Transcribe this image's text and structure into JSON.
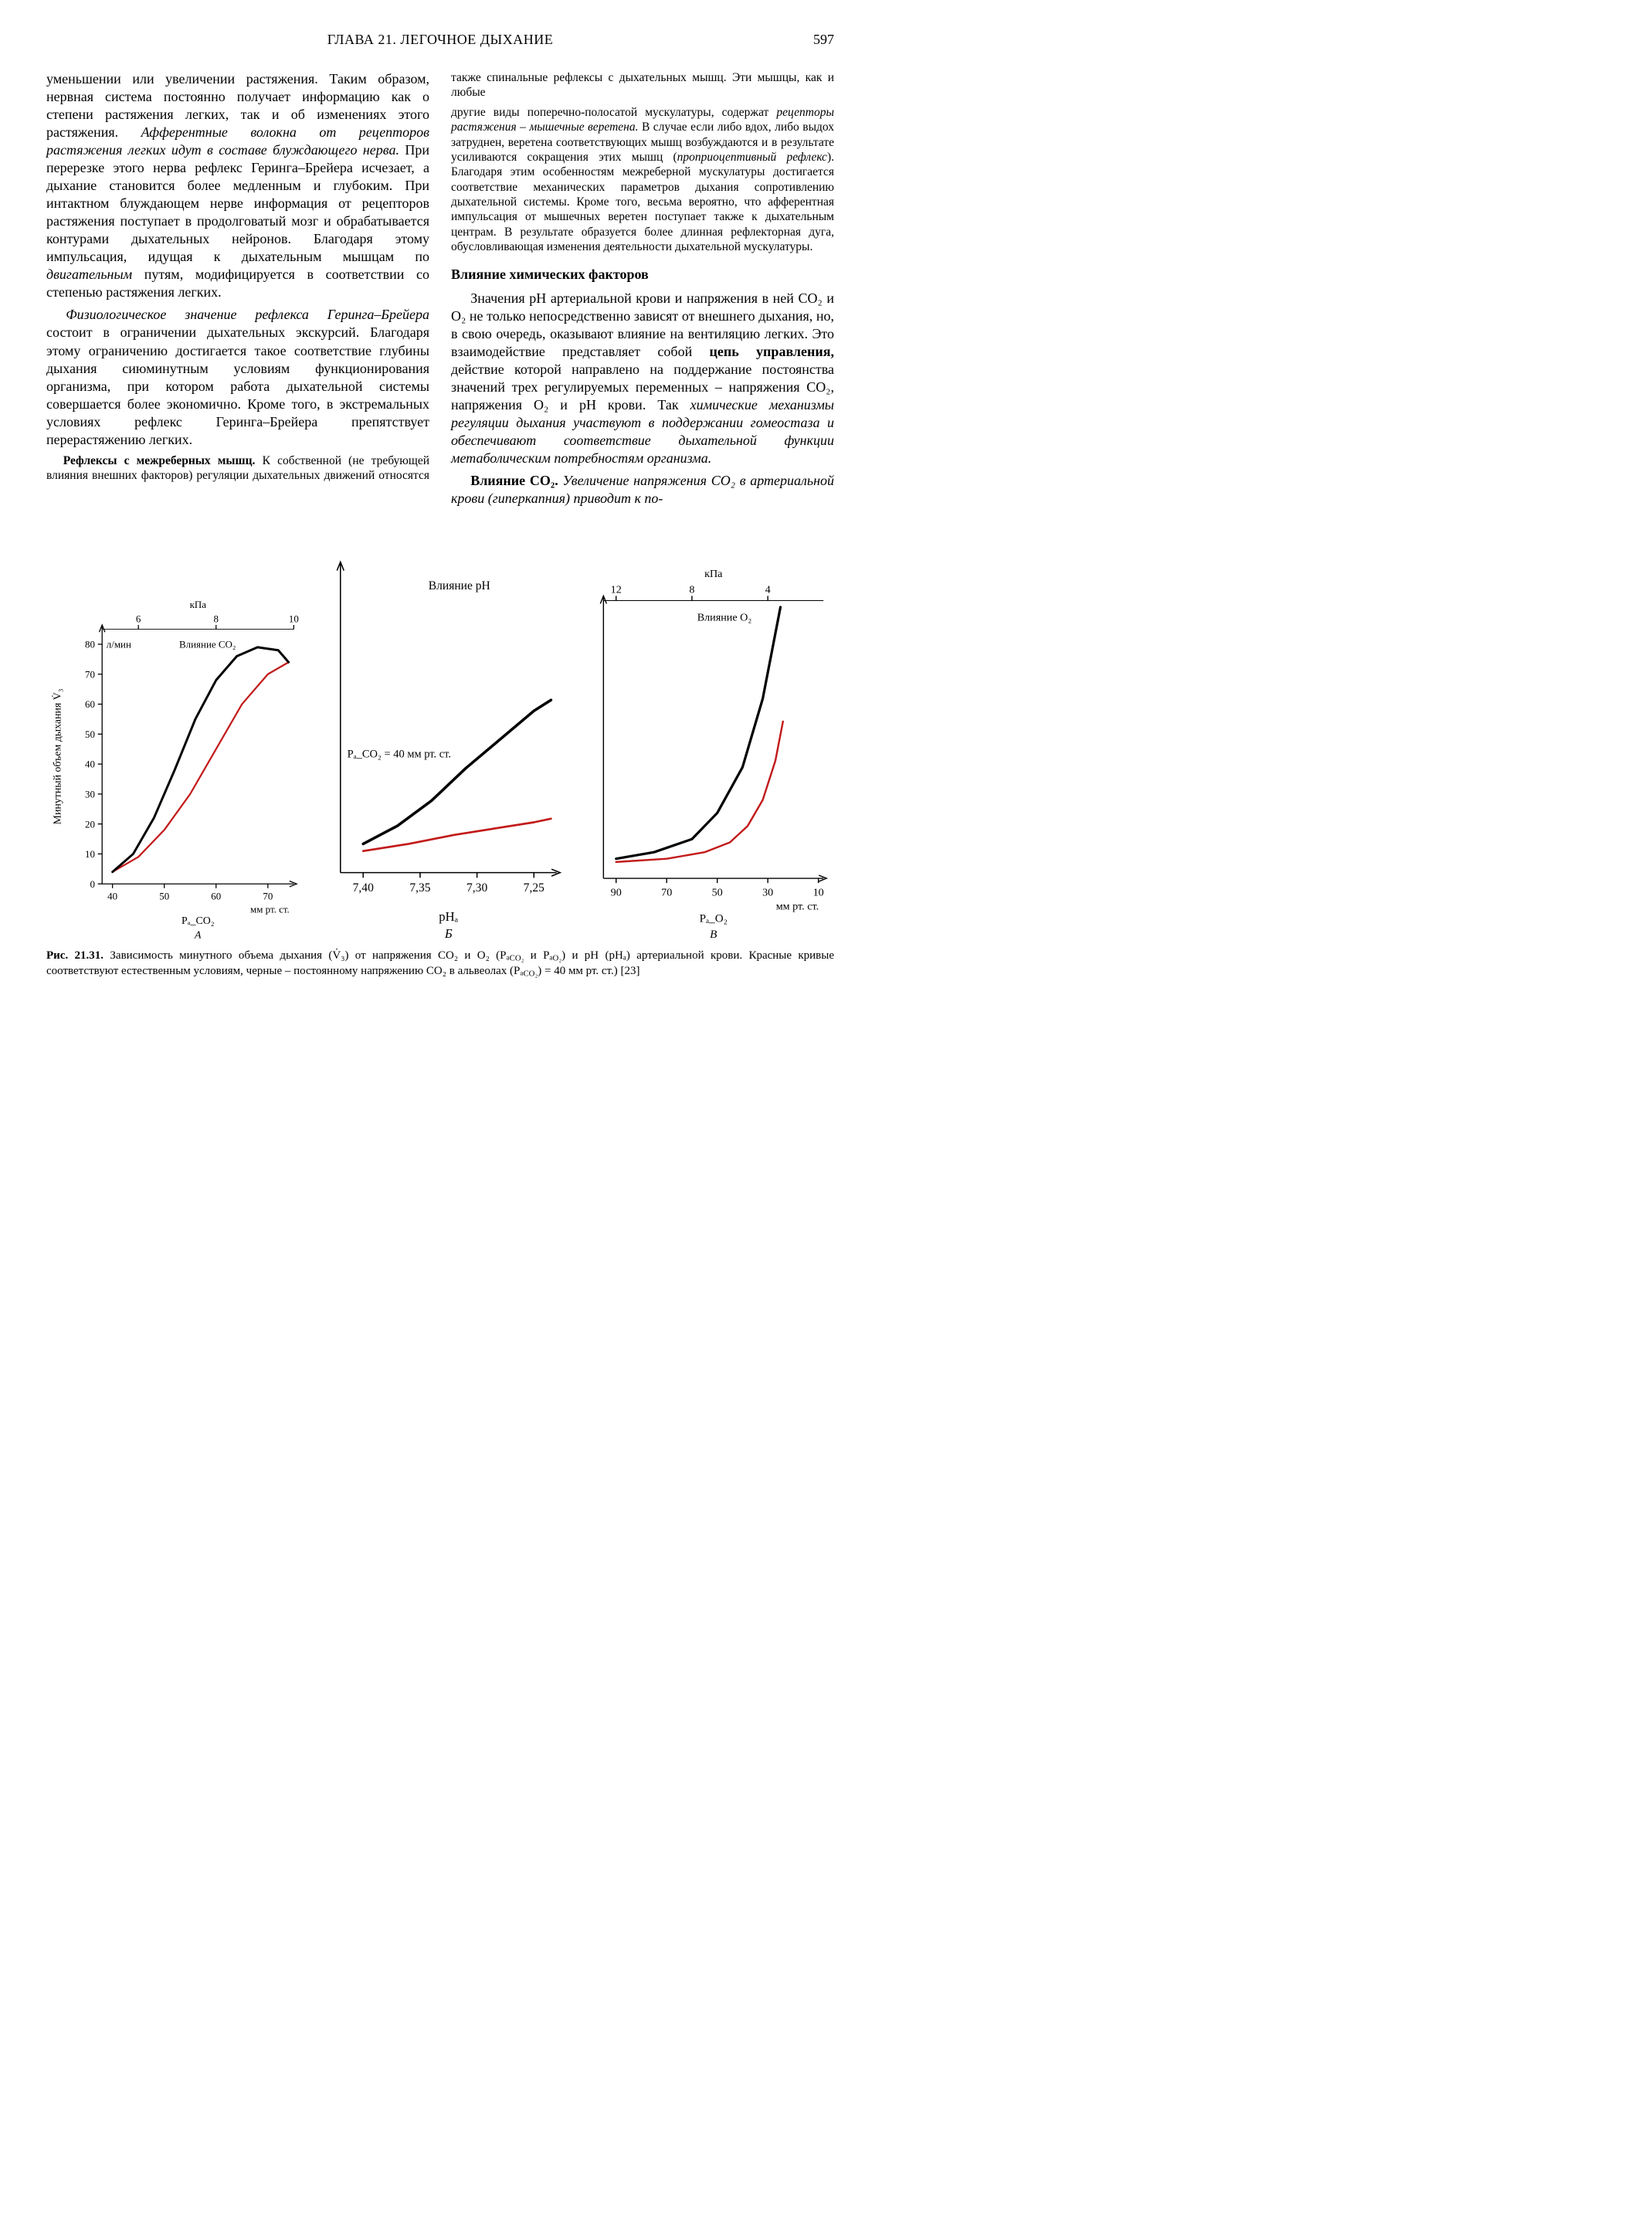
{
  "header": {
    "chapter": "ГЛАВА 21. ЛЕГОЧНОЕ ДЫХАНИЕ",
    "page": "597"
  },
  "text": {
    "p1a": "уменьшении или увеличении растяжения. Таким образом, нервная система постоянно получает информацию как о степени растяжения легких, так и об изменениях этого растяжения. ",
    "p1i": "Афферентные волокна от рецепторов растяжения легких идут в составе блуждающего нерва.",
    "p1b": " При перерезке этого нерва рефлекс Геринга–Брейера исчезает, а дыхание становится более медленным и глубоким. При интактном блуждающем нерве информация от рецепторов растяжения поступает в продолговатый мозг и обрабатывается контурами дыхательных нейронов. Благодаря этому импульсация, идущая к дыхательным мышцам по ",
    "p1c": "двигательным",
    "p1d": " путям, модифицируется в соответствии со степенью растяжения легких.",
    "p2i": "Физиологическое значение рефлекса Геринга–Брейера",
    "p2": " состоит в ограничении дыхательных экскурсий. Благодаря этому ограничению достигается такое соответствие глубины дыхания сиюминутным условиям функционирования организма, при котором работа дыхательной системы совершается более экономично. Кроме того, в экстремальных условиях рефлекс Геринга–Брейера препятствует перерастяжению легких.",
    "p3lead": "Рефлексы с межреберных мышц. ",
    "p3": "К собственной (не требующей влияния внешних факторов) регуляции дыхательных движений относятся также спинальные рефлексы с дыхательных мышц. Эти мышцы, как и любые",
    "p4a": "другие виды поперечно-полосатой мускулатуры, содержат ",
    "p4i": "рецепторы растяжения – мышечные веретена.",
    "p4b": " В случае если либо вдох, либо выдох затруднен, веретена соответствующих мышц возбуждаются и в результате усиливаются сокращения этих мышц (",
    "p4c": "проприоцептивный рефлекс",
    "p4d": "). Благодаря этим особенностям межреберной мускулатуры достигается соответствие механических параметров дыхания сопротивлению дыхательной системы. Кроме того, весьма вероятно, что афферентная импульсация от мышечных веретен поступает также к дыхательным центрам. В результате образуется более длинная рефлекторная дуга, обусловливающая изменения деятельности дыхательной мускулатуры.",
    "sec1": "Влияние химических факторов",
    "p5": "Значения pH артериальной крови и напряжения в ней CO₂ и O₂ не только непосредственно зависят от внешнего дыхания, но, в свою очередь, оказывают влияние на вентиляцию легких. Это взаимодействие представляет собой ",
    "p5b": "цепь управления,",
    "p5c": " действие которой направлено на поддержание постоянства значений трех регулируемых переменных – напряжения CO₂, напряжения O₂ и pH крови. Так ",
    "p5i": "химические механизмы регуляции дыхания участвуют в поддержании гомеостаза и обеспечивают соответствие дыхательной функции метаболическим потребностям организма.",
    "p6lead": "Влияние CO₂. ",
    "p6i": "Увеличение напряжения CO₂ в артериальной крови (гиперкапния) приводит к по-"
  },
  "figure": {
    "ylabel": "Минутный объем дыхания V̇₃",
    "yunit": "л/мин",
    "yticks": [
      "0",
      "10",
      "20",
      "30",
      "40",
      "50",
      "60",
      "70",
      "80"
    ],
    "ylim": [
      0,
      85
    ],
    "panelA": {
      "topunit": "кПа",
      "topticks": [
        "6",
        "8",
        "10"
      ],
      "label": "Влияние CO₂",
      "xticks": [
        "40",
        "50",
        "60",
        "70"
      ],
      "xunit": "мм рт. ст.",
      "xaxis": "Pₐ_CO₂",
      "tag": "А",
      "xlim": [
        38,
        75
      ],
      "curves": {
        "black": [
          [
            40,
            4
          ],
          [
            44,
            10
          ],
          [
            48,
            22
          ],
          [
            52,
            38
          ],
          [
            56,
            55
          ],
          [
            60,
            68
          ],
          [
            64,
            76
          ],
          [
            68,
            79
          ],
          [
            72,
            78
          ],
          [
            74,
            74
          ]
        ],
        "red": [
          [
            40,
            4
          ],
          [
            45,
            9
          ],
          [
            50,
            18
          ],
          [
            55,
            30
          ],
          [
            60,
            45
          ],
          [
            65,
            60
          ],
          [
            70,
            70
          ],
          [
            74,
            74
          ]
        ]
      },
      "colors": {
        "black": "#000000",
        "red": "#c21a1a"
      }
    },
    "panelB": {
      "label": "Влияние pH",
      "note": "Pₐ_CO₂ = 40 мм рт. ст.",
      "xticks": [
        "7,40",
        "7,35",
        "7,30",
        "7,25"
      ],
      "xaxis": "pHₐ",
      "tag": "Б",
      "xlim": [
        7.42,
        7.23
      ],
      "curves": {
        "black": [
          [
            7.4,
            8
          ],
          [
            7.37,
            13
          ],
          [
            7.34,
            20
          ],
          [
            7.31,
            29
          ],
          [
            7.28,
            37
          ],
          [
            7.25,
            45
          ],
          [
            7.235,
            48
          ]
        ],
        "red": [
          [
            7.4,
            6
          ],
          [
            7.36,
            8
          ],
          [
            7.32,
            10.5
          ],
          [
            7.28,
            12.5
          ],
          [
            7.25,
            14
          ],
          [
            7.235,
            15
          ]
        ]
      },
      "colors": {
        "black": "#000000",
        "red": "#c21a1a"
      }
    },
    "panelC": {
      "topunit": "кПа",
      "topticks": [
        "12",
        "8",
        "4"
      ],
      "label": "Влияние O₂",
      "xticks": [
        "90",
        "70",
        "50",
        "30",
        "10"
      ],
      "xunit": "мм рт. ст.",
      "xaxis": "Pₐ_O₂",
      "tag": "В",
      "xlim": [
        95,
        8
      ],
      "curves": {
        "black": [
          [
            90,
            6
          ],
          [
            75,
            8
          ],
          [
            60,
            12
          ],
          [
            50,
            20
          ],
          [
            40,
            34
          ],
          [
            32,
            55
          ],
          [
            27,
            75
          ],
          [
            25,
            83
          ]
        ],
        "red": [
          [
            90,
            5
          ],
          [
            70,
            6
          ],
          [
            55,
            8
          ],
          [
            45,
            11
          ],
          [
            38,
            16
          ],
          [
            32,
            24
          ],
          [
            27,
            36
          ],
          [
            24,
            48
          ]
        ]
      },
      "colors": {
        "black": "#000000",
        "red": "#c21a1a"
      }
    },
    "stroke_widths": {
      "black": 3.2,
      "red": 2.4
    },
    "axis_color": "#000000",
    "axis_width": 1.4,
    "tick_font": 14,
    "label_font": 15,
    "annotation_font": 14
  },
  "caption": {
    "lead": "Рис. 21.31.",
    "body1": " Зависимость минутного объема дыхания (V̇₃) от напряжения CO₂ и O₂ (Pₐ",
    "sub1": "CO₂",
    "body2": " и Pₐ",
    "sub2": "O₂",
    "body3": ") и pH (pHₐ) артериальной крови. Красные кривые соответствуют естественным условиям, черные – постоянному напряжению CO₂ в альвеолах (Pₐ",
    "sub3": "CO₂",
    "body4": ") = 40 мм рт. ст.) [23]"
  }
}
